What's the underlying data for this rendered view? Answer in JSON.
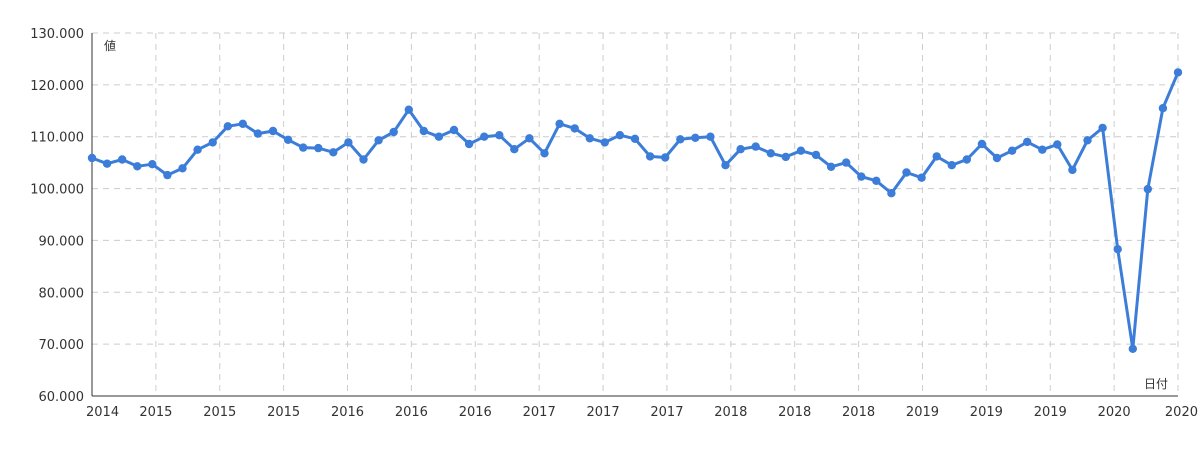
{
  "chart_data": {
    "type": "line",
    "title": "",
    "xlabel": "日付",
    "ylabel": "値",
    "ylim": [
      60,
      130
    ],
    "y_ticks": [
      "60.000",
      "70.000",
      "80.000",
      "90.000",
      "100.000",
      "110.000",
      "120.000",
      "130.000"
    ],
    "y_tick_values": [
      60,
      70,
      80,
      90,
      100,
      110,
      120,
      130
    ],
    "x_ticks": [
      "2014",
      "2015",
      "2015",
      "2015",
      "2016",
      "2016",
      "2016",
      "2017",
      "2017",
      "2017",
      "2018",
      "2018",
      "2018",
      "2019",
      "2019",
      "2019",
      "2020",
      "2020"
    ],
    "grid": true,
    "color": "#3b7dd8",
    "series": [
      {
        "name": "",
        "values": [
          105.9,
          104.8,
          105.6,
          104.3,
          104.7,
          102.6,
          103.9,
          107.5,
          108.9,
          112.0,
          112.5,
          110.6,
          111.1,
          109.4,
          107.9,
          107.8,
          107.0,
          108.9,
          105.6,
          109.3,
          110.9,
          115.2,
          111.1,
          110.0,
          111.3,
          108.6,
          110.0,
          110.3,
          107.6,
          109.7,
          106.8,
          112.5,
          111.6,
          109.7,
          108.9,
          110.3,
          109.6,
          106.2,
          106.0,
          109.5,
          109.8,
          110.0,
          104.5,
          107.6,
          108.1,
          106.8,
          106.1,
          107.3,
          106.5,
          104.2,
          105.0,
          102.3,
          101.5,
          99.1,
          103.1,
          102.1,
          106.2,
          104.5,
          105.6,
          108.6,
          105.9,
          107.3,
          109.0,
          107.5,
          108.5,
          103.6,
          109.3,
          111.7,
          88.3,
          69.1,
          99.9,
          115.5,
          122.4
        ]
      }
    ]
  }
}
